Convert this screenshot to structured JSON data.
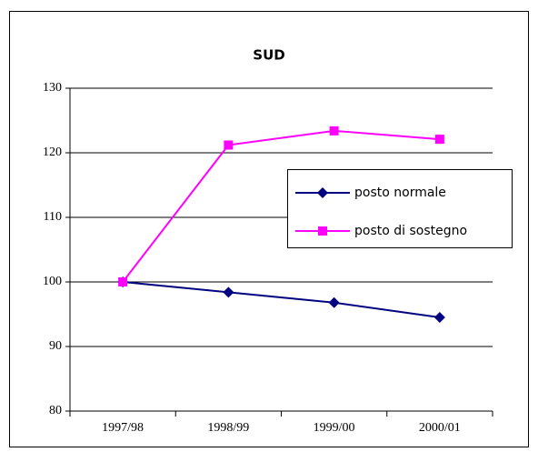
{
  "chart_data": {
    "type": "line",
    "title": "SUD",
    "categories": [
      "1997/98",
      "1998/99",
      "1999/00",
      "2000/01"
    ],
    "series": [
      {
        "name": "posto normale",
        "color": "#000080",
        "marker": "diamond",
        "values": [
          100,
          98.4,
          96.8,
          94.5
        ]
      },
      {
        "name": "posto di sostegno",
        "color": "#ff00ff",
        "marker": "square",
        "values": [
          100,
          121.2,
          123.4,
          122.1
        ]
      }
    ],
    "ylim": [
      80,
      130
    ],
    "yticks": [
      80,
      90,
      100,
      110,
      120,
      130
    ],
    "grid": true,
    "legend": "right"
  }
}
